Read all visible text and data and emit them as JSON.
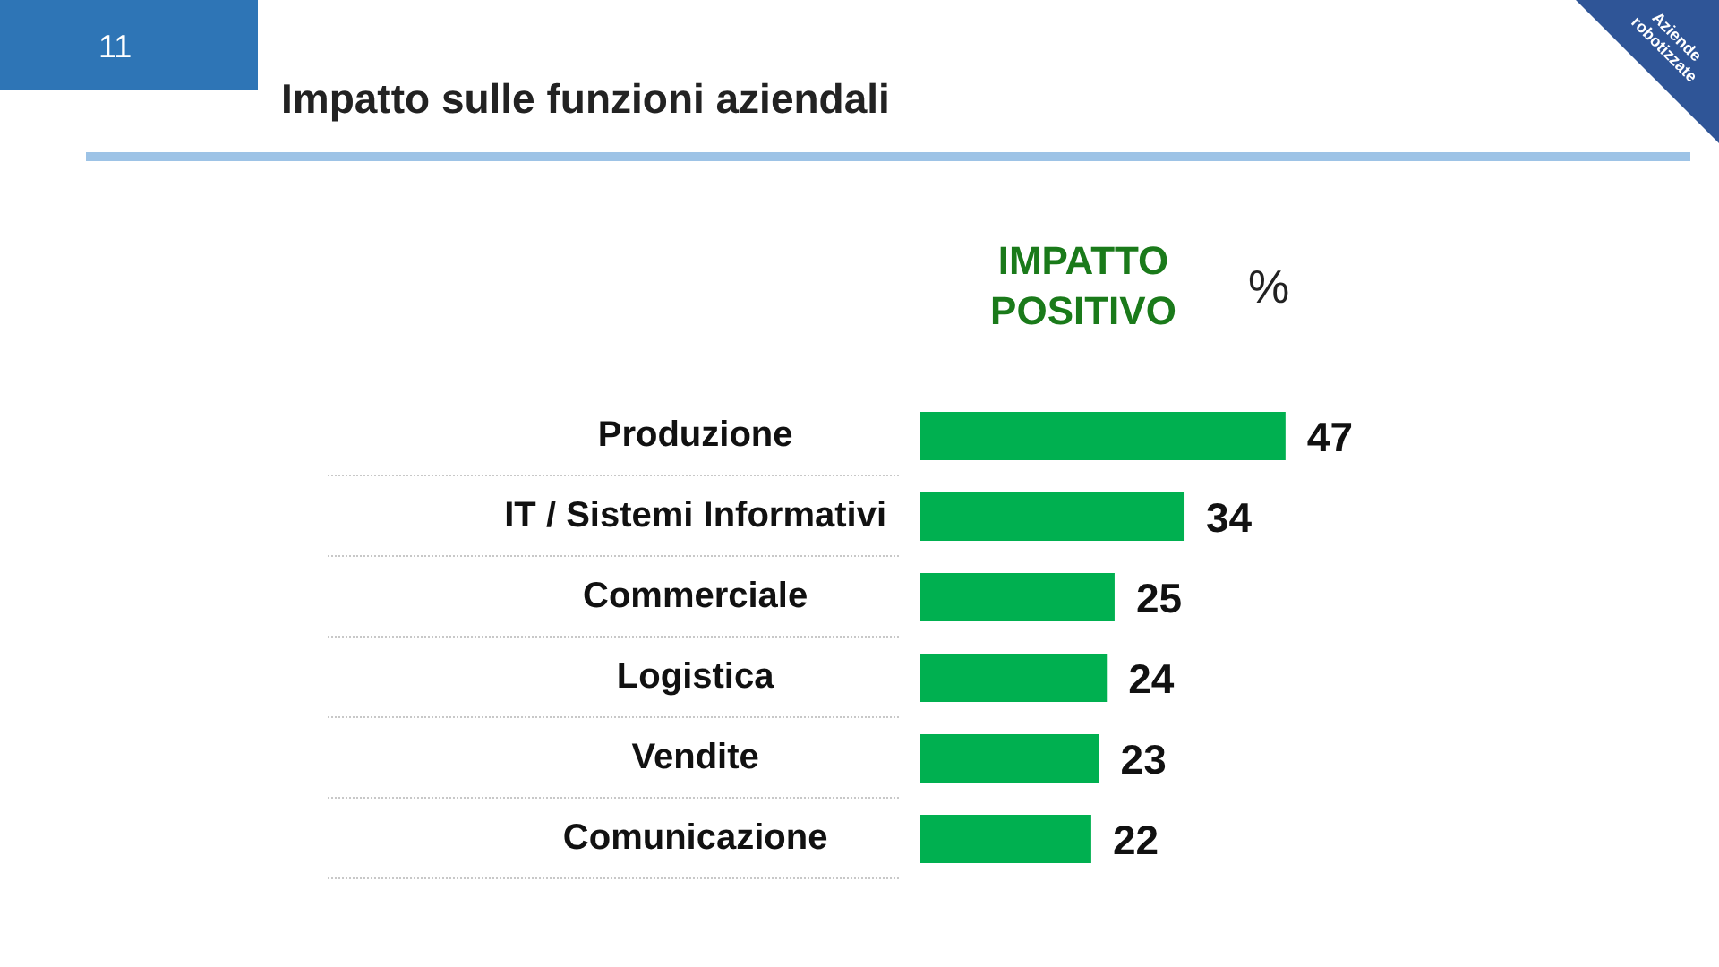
{
  "chart_data": {
    "type": "bar",
    "orientation": "horizontal",
    "title": "Impatto sulle funzioni aziendali",
    "categories": [
      "Produzione",
      "IT / Sistemi Informativi",
      "Commerciale",
      "Logistica",
      "Vendite",
      "Comunicazione"
    ],
    "series": [
      {
        "name": "IMPATTO POSITIVO",
        "color": "#00b050",
        "values": [
          47,
          34,
          25,
          24,
          23,
          22
        ]
      }
    ],
    "data_labels": true,
    "annotations": [
      "11",
      "Aziende robotizzate",
      "%"
    ]
  }
}
